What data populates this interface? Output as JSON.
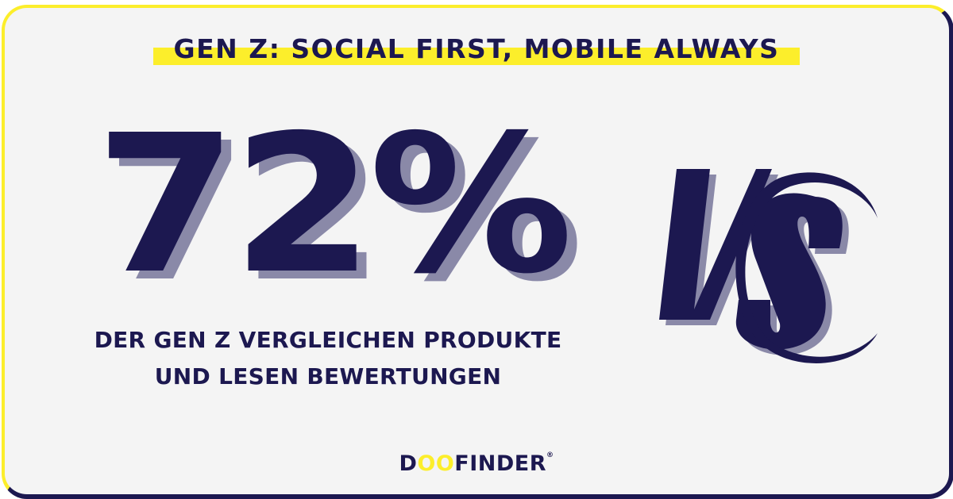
{
  "title": "GEN Z: SOCIAL FIRST, MOBILE ALWAYS",
  "statistic": "72%",
  "description_line1": "DER GEN Z VERGLEICHEN PRODUKTE",
  "description_line2": "UND LESEN BEWERTUNGEN",
  "vs_graphic": "VS",
  "logo": {
    "prefix": "D",
    "infinity": "OO",
    "suffix": "FINDER",
    "mark": "®"
  },
  "colors": {
    "navy": "#1c1850",
    "yellow": "#fcee2b",
    "shadow": "#8a89a8",
    "background": "#f4f4f4"
  }
}
